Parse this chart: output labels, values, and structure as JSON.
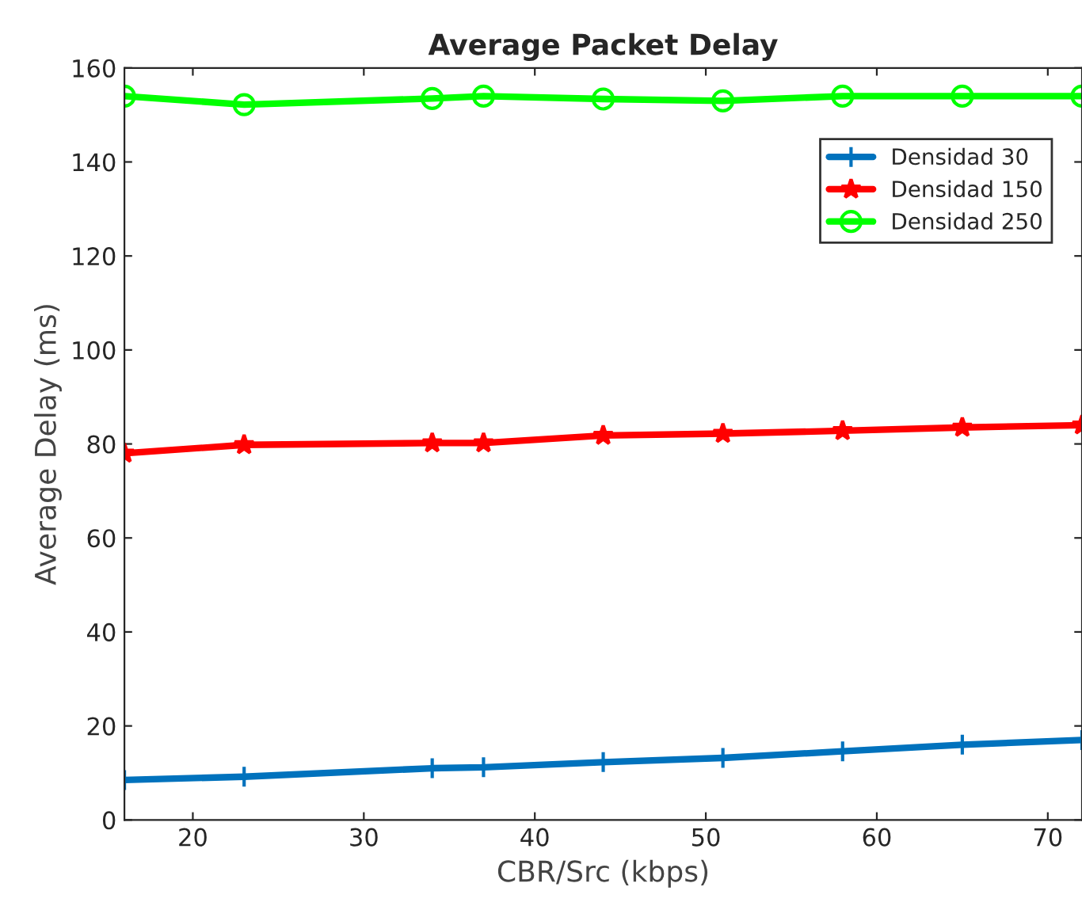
{
  "chart_data": {
    "type": "line",
    "title": "Average Packet Delay",
    "xlabel": "CBR/Src (kbps)",
    "ylabel": "Average Delay (ms)",
    "x": [
      16,
      23,
      34,
      37,
      44,
      51,
      58,
      65,
      72
    ],
    "series": [
      {
        "name": "Densidad 30",
        "color": "#0072bd",
        "marker": "cross",
        "values": [
          8.5,
          9.2,
          11,
          11.2,
          12.3,
          13.2,
          14.6,
          16,
          17
        ]
      },
      {
        "name": "Densidad 150",
        "color": "#ff0000",
        "marker": "star",
        "values": [
          78,
          79.8,
          80.2,
          80.2,
          81.8,
          82.2,
          82.8,
          83.5,
          84
        ]
      },
      {
        "name": "Densidad 250",
        "color": "#00ff00",
        "marker": "circle",
        "values": [
          154,
          152.2,
          153.5,
          154,
          153.4,
          153,
          154,
          154,
          154
        ]
      }
    ],
    "xlim": [
      16,
      72
    ],
    "xticks": [
      20,
      30,
      40,
      50,
      60,
      70
    ],
    "ylim": [
      0,
      160
    ],
    "yticks": [
      0,
      20,
      40,
      60,
      80,
      100,
      120,
      140,
      160
    ],
    "grid": false,
    "legend": "top right",
    "line_style": "solid"
  }
}
